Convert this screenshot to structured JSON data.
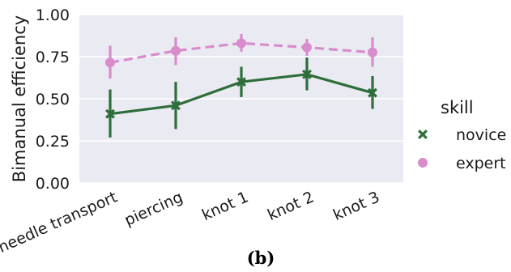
{
  "caption": "(b)",
  "chart_data": {
    "type": "line",
    "title": "",
    "xlabel": "",
    "ylabel": "Bimanual efficiency",
    "categories": [
      "needle transport",
      "piercing",
      "knot 1",
      "knot 2",
      "knot 3"
    ],
    "ylim": [
      0,
      1
    ],
    "yticks": [
      "0.00",
      "0.25",
      "0.50",
      "0.75",
      "1.00"
    ],
    "grid": true,
    "background": "#eaeaf2",
    "legend": {
      "title": "skill",
      "placement": "right-outside"
    },
    "series": [
      {
        "name": "novice",
        "marker": "x",
        "line_style": "solid",
        "color": "#2d6e3a",
        "values": [
          0.41,
          0.46,
          0.6,
          0.645,
          0.535
        ],
        "error_low": [
          0.27,
          0.32,
          0.51,
          0.55,
          0.44
        ],
        "error_high": [
          0.555,
          0.6,
          0.69,
          0.745,
          0.635
        ]
      },
      {
        "name": "expert",
        "marker": "o",
        "line_style": "dashed",
        "color": "#d98ccc",
        "values": [
          0.715,
          0.785,
          0.83,
          0.805,
          0.775
        ],
        "error_low": [
          0.62,
          0.7,
          0.78,
          0.755,
          0.69
        ],
        "error_high": [
          0.815,
          0.865,
          0.885,
          0.855,
          0.865
        ]
      }
    ]
  }
}
